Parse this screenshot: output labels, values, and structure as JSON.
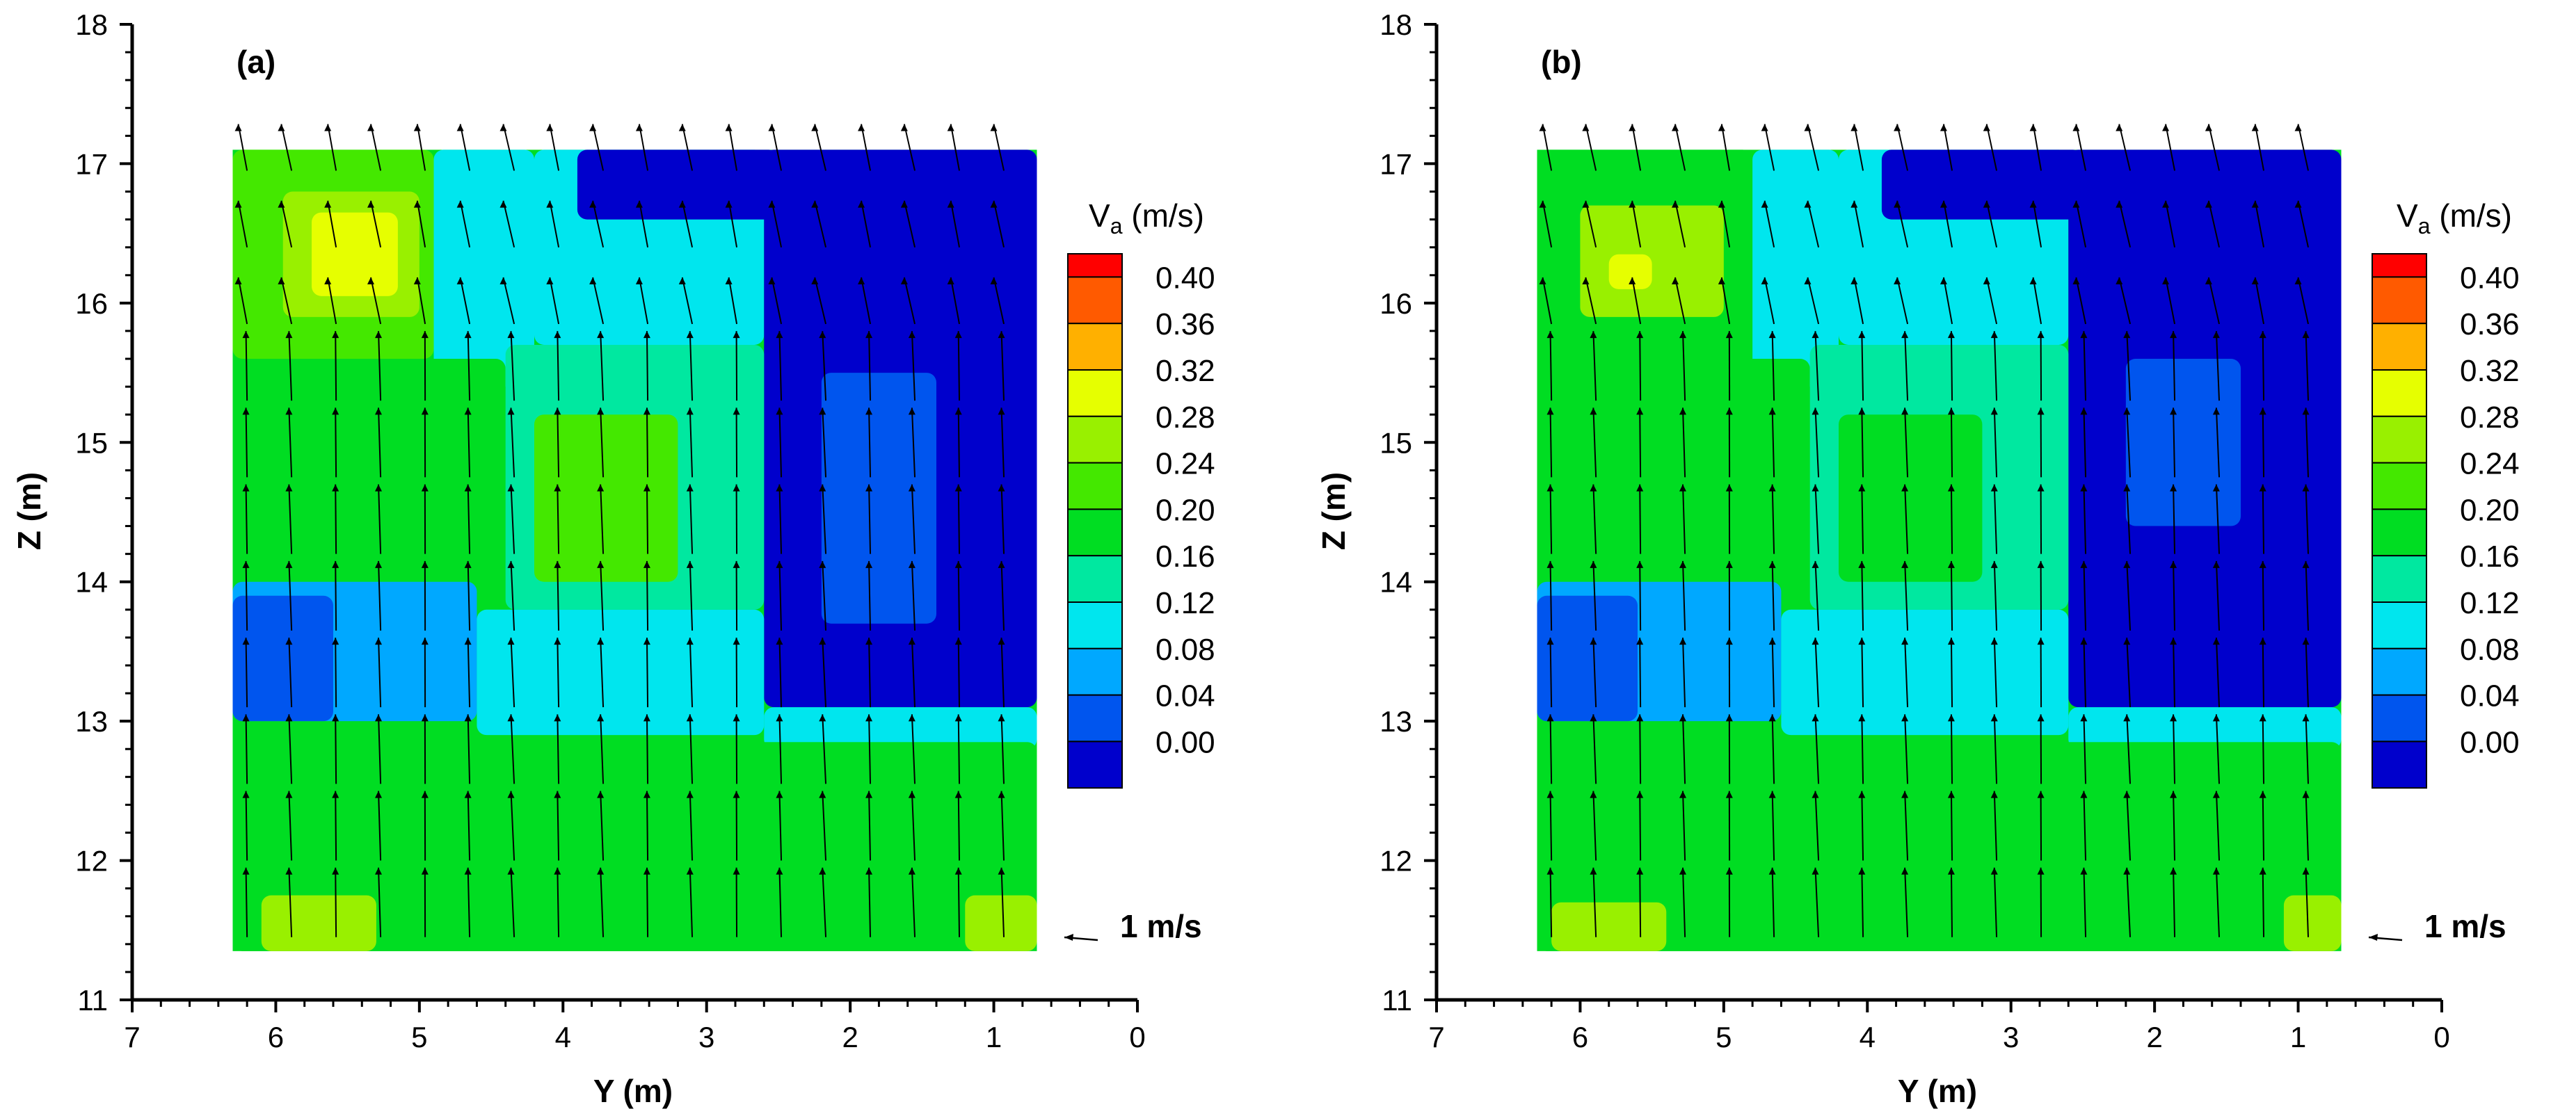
{
  "chart_data": [
    {
      "type": "heatmap",
      "panel_label": "(a)",
      "xlabel": "Y (m)",
      "ylabel": "Z (m)",
      "xlim": [
        7,
        0
      ],
      "ylim": [
        11,
        18
      ],
      "x_ticks": [
        "7",
        "6",
        "5",
        "4",
        "3",
        "2",
        "1",
        "0"
      ],
      "y_ticks": [
        "11",
        "12",
        "13",
        "14",
        "15",
        "16",
        "17",
        "18"
      ],
      "field_extent": {
        "x": [
          6.3,
          0.7
        ],
        "y": [
          11.35,
          17.1
        ]
      },
      "colorbar": {
        "title_main": "V",
        "title_sub": "a",
        "title_unit": " (m/s)",
        "levels": [
          "0.40",
          "0.36",
          "0.32",
          "0.28",
          "0.24",
          "0.20",
          "0.16",
          "0.12",
          "0.08",
          "0.04",
          "0.00"
        ]
      },
      "vector_reference": "1 m/s",
      "regions": [
        {
          "x0": 6.3,
          "x1": 4.9,
          "y0": 15.6,
          "y1": 17.1,
          "v": 0.24
        },
        {
          "x0": 5.95,
          "x1": 5.0,
          "y0": 15.9,
          "y1": 16.8,
          "v": 0.3
        },
        {
          "x0": 5.75,
          "x1": 5.15,
          "y0": 16.05,
          "y1": 16.65,
          "v": 0.35
        },
        {
          "x0": 4.9,
          "x1": 4.2,
          "y0": 15.4,
          "y1": 17.1,
          "v": 0.14
        },
        {
          "x0": 4.2,
          "x1": 2.6,
          "y0": 15.7,
          "y1": 17.1,
          "v": 0.12
        },
        {
          "x0": 3.9,
          "x1": 2.5,
          "y0": 16.6,
          "y1": 17.1,
          "v": 0.02
        },
        {
          "x0": 2.6,
          "x1": 0.7,
          "y0": 13.1,
          "y1": 17.1,
          "v": 0.02
        },
        {
          "x0": 2.2,
          "x1": 1.4,
          "y0": 13.7,
          "y1": 15.5,
          "v": 0.06
        },
        {
          "x0": 6.3,
          "x1": 4.4,
          "y0": 14.0,
          "y1": 15.6,
          "v": 0.21
        },
        {
          "x0": 4.4,
          "x1": 2.6,
          "y0": 13.8,
          "y1": 15.7,
          "v": 0.19
        },
        {
          "x0": 4.2,
          "x1": 3.2,
          "y0": 14.0,
          "y1": 15.2,
          "v": 0.24
        },
        {
          "x0": 6.3,
          "x1": 4.6,
          "y0": 13.0,
          "y1": 14.0,
          "v": 0.09
        },
        {
          "x0": 6.3,
          "x1": 5.6,
          "y0": 13.0,
          "y1": 13.9,
          "v": 0.04
        },
        {
          "x0": 4.6,
          "x1": 2.6,
          "y0": 12.9,
          "y1": 13.8,
          "v": 0.12
        },
        {
          "x0": 2.6,
          "x1": 0.7,
          "y0": 12.8,
          "y1": 13.1,
          "v": 0.12
        },
        {
          "x0": 6.3,
          "x1": 0.7,
          "y0": 11.35,
          "y1": 12.85,
          "v": 0.21
        },
        {
          "x0": 6.1,
          "x1": 5.3,
          "y0": 11.35,
          "y1": 11.75,
          "v": 0.3
        },
        {
          "x0": 1.2,
          "x1": 0.7,
          "y0": 11.35,
          "y1": 11.75,
          "v": 0.29
        }
      ]
    },
    {
      "type": "heatmap",
      "panel_label": "(b)",
      "xlabel": "Y (m)",
      "ylabel": "Z (m)",
      "xlim": [
        7,
        0
      ],
      "ylim": [
        11,
        18
      ],
      "x_ticks": [
        "7",
        "6",
        "5",
        "4",
        "3",
        "2",
        "1",
        "0"
      ],
      "y_ticks": [
        "11",
        "12",
        "13",
        "14",
        "15",
        "16",
        "17",
        "18"
      ],
      "field_extent": {
        "x": [
          6.3,
          0.7
        ],
        "y": [
          11.35,
          17.1
        ]
      },
      "colorbar": {
        "title_main": "V",
        "title_sub": "a",
        "title_unit": " (m/s)",
        "levels": [
          "0.40",
          "0.36",
          "0.32",
          "0.28",
          "0.24",
          "0.20",
          "0.16",
          "0.12",
          "0.08",
          "0.04",
          "0.00"
        ]
      },
      "vector_reference": "1 m/s",
      "regions": [
        {
          "x0": 6.3,
          "x1": 4.8,
          "y0": 15.6,
          "y1": 17.1,
          "v": 0.22
        },
        {
          "x0": 6.0,
          "x1": 5.0,
          "y0": 15.9,
          "y1": 16.7,
          "v": 0.29
        },
        {
          "x0": 5.8,
          "x1": 5.5,
          "y0": 16.1,
          "y1": 16.35,
          "v": 0.34
        },
        {
          "x0": 4.8,
          "x1": 4.2,
          "y0": 15.4,
          "y1": 17.1,
          "v": 0.14
        },
        {
          "x0": 4.2,
          "x1": 2.6,
          "y0": 15.7,
          "y1": 17.1,
          "v": 0.12
        },
        {
          "x0": 3.9,
          "x1": 2.5,
          "y0": 16.6,
          "y1": 17.1,
          "v": 0.02
        },
        {
          "x0": 2.6,
          "x1": 0.7,
          "y0": 13.1,
          "y1": 17.1,
          "v": 0.02
        },
        {
          "x0": 2.2,
          "x1": 1.4,
          "y0": 14.4,
          "y1": 15.6,
          "v": 0.06
        },
        {
          "x0": 6.3,
          "x1": 4.4,
          "y0": 14.0,
          "y1": 15.6,
          "v": 0.2
        },
        {
          "x0": 4.4,
          "x1": 2.6,
          "y0": 13.8,
          "y1": 15.7,
          "v": 0.19
        },
        {
          "x0": 4.2,
          "x1": 3.2,
          "y0": 14.0,
          "y1": 15.2,
          "v": 0.23
        },
        {
          "x0": 6.3,
          "x1": 4.6,
          "y0": 13.0,
          "y1": 14.0,
          "v": 0.09
        },
        {
          "x0": 6.3,
          "x1": 5.6,
          "y0": 13.0,
          "y1": 13.9,
          "v": 0.04
        },
        {
          "x0": 4.6,
          "x1": 2.6,
          "y0": 12.9,
          "y1": 13.8,
          "v": 0.12
        },
        {
          "x0": 2.6,
          "x1": 0.7,
          "y0": 12.8,
          "y1": 13.1,
          "v": 0.12
        },
        {
          "x0": 6.3,
          "x1": 0.7,
          "y0": 11.35,
          "y1": 12.85,
          "v": 0.2
        },
        {
          "x0": 6.2,
          "x1": 5.4,
          "y0": 11.35,
          "y1": 11.7,
          "v": 0.3
        },
        {
          "x0": 1.1,
          "x1": 0.7,
          "y0": 11.35,
          "y1": 11.75,
          "v": 0.28
        }
      ]
    }
  ]
}
